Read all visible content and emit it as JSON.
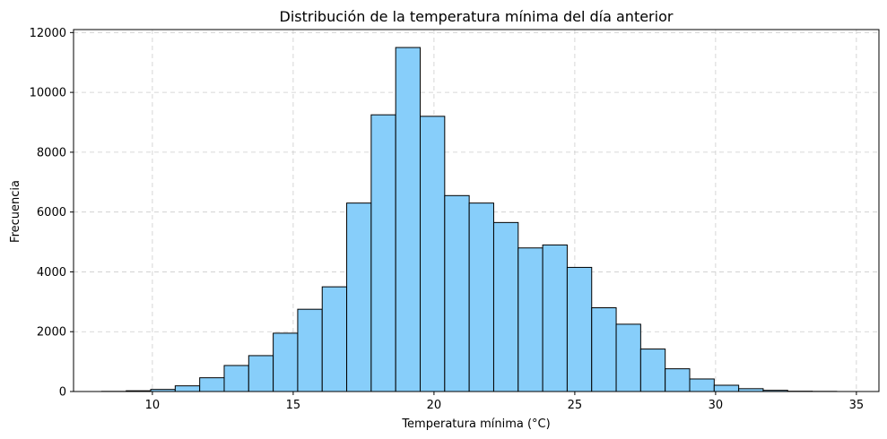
{
  "chart_data": {
    "type": "bar",
    "title": "Distribución de la temperatura mínima del día anterior",
    "xlabel": "Temperatura mínima (°C)",
    "ylabel": "Frecuencia",
    "xlim": [
      7.2,
      35.8
    ],
    "ylim": [
      0,
      12100
    ],
    "x_ticks": [
      10,
      15,
      20,
      25,
      30,
      35
    ],
    "y_ticks": [
      0,
      2000,
      4000,
      6000,
      8000,
      10000,
      12000
    ],
    "grid": true,
    "bar_color": "#87CEFA",
    "edge_color": "#000000",
    "bin_edges": [
      8.2,
      9.07,
      9.94,
      10.81,
      11.68,
      12.55,
      13.42,
      14.29,
      15.16,
      16.03,
      16.9,
      17.77,
      18.64,
      19.51,
      20.38,
      21.25,
      22.12,
      22.99,
      23.86,
      24.73,
      25.6,
      26.47,
      27.34,
      28.21,
      29.08,
      29.95,
      30.82,
      31.69,
      32.56,
      33.43,
      34.3
    ],
    "values": [
      5,
      25,
      70,
      190,
      460,
      870,
      1200,
      1950,
      2750,
      3500,
      6300,
      9250,
      11500,
      9200,
      6550,
      6300,
      5650,
      4800,
      4900,
      4150,
      2800,
      2250,
      1420,
      760,
      420,
      210,
      95,
      40,
      10,
      5
    ]
  }
}
